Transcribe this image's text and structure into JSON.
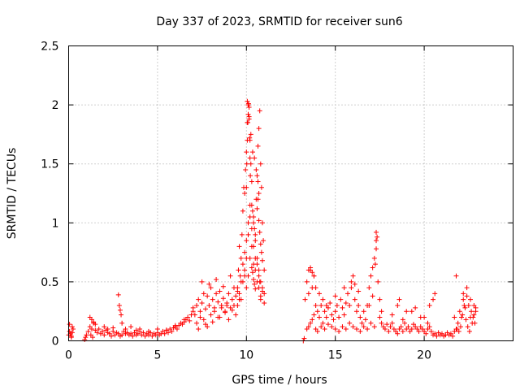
{
  "chart_data": {
    "type": "scatter",
    "title": "Day 337 of 2023, SRMTID for receiver sun6",
    "xlabel": "GPS time / hours",
    "ylabel": "SRMTID / TECUs",
    "xlim": [
      0,
      25
    ],
    "ylim": [
      0,
      2.5
    ],
    "x_ticks": [
      0,
      5,
      10,
      15,
      20
    ],
    "y_ticks": [
      0,
      0.5,
      1,
      1.5,
      2,
      2.5
    ],
    "x_tick_labels": [
      "0",
      "5",
      "10",
      "15",
      "20"
    ],
    "y_tick_labels": [
      "0",
      "0.5",
      "1",
      "1.5",
      "2",
      "2.5"
    ],
    "grid": true,
    "marker": "+",
    "color": "#ff0000",
    "series": [
      {
        "name": "SRMTID",
        "x": [
          0.0,
          0.05,
          0.1,
          0.15,
          0.2,
          0.25,
          0.05,
          0.15,
          0.2,
          0.9,
          0.95,
          1.0,
          1.1,
          1.2,
          1.3,
          1.4,
          1.5,
          1.6,
          1.7,
          1.8,
          1.9,
          2.0,
          2.1,
          2.2,
          2.3,
          2.4,
          2.5,
          2.6,
          2.7,
          2.8,
          2.9,
          3.0,
          3.1,
          3.2,
          3.3,
          3.4,
          3.5,
          3.6,
          3.7,
          3.8,
          3.9,
          4.0,
          4.1,
          4.2,
          4.3,
          4.4,
          4.5,
          4.6,
          4.7,
          4.8,
          4.9,
          5.0,
          5.1,
          5.2,
          5.3,
          5.4,
          5.5,
          5.6,
          5.7,
          5.8,
          5.9,
          6.0,
          6.1,
          6.2,
          6.3,
          6.4,
          6.5,
          6.6,
          6.7,
          6.8,
          6.9,
          7.0,
          1.2,
          1.3,
          1.4,
          1.5,
          1.25,
          1.35,
          2.0,
          2.2,
          2.5,
          2.8,
          2.85,
          2.9,
          2.95,
          3.0,
          3.2,
          3.5,
          3.8,
          4.0,
          4.5,
          5.0,
          5.5,
          6.0,
          6.5,
          7.0,
          7.1,
          7.2,
          7.3,
          7.4,
          7.5,
          7.6,
          7.7,
          7.8,
          7.9,
          8.0,
          8.1,
          8.2,
          8.3,
          8.4,
          8.5,
          8.6,
          8.7,
          8.8,
          8.9,
          9.0,
          9.1,
          9.2,
          9.3,
          9.4,
          9.5,
          7.2,
          7.4,
          7.6,
          7.8,
          8.0,
          8.2,
          8.4,
          8.6,
          8.8,
          9.0,
          9.2,
          9.4,
          7.5,
          7.9,
          8.3,
          8.7,
          9.1,
          9.3,
          7.3,
          7.7,
          8.1,
          8.5,
          8.9,
          9.5,
          9.55,
          9.6,
          9.65,
          9.7,
          9.75,
          9.8,
          9.85,
          9.9,
          9.95,
          10.0,
          10.05,
          10.1,
          10.15,
          10.2,
          10.25,
          10.3,
          10.35,
          10.4,
          10.45,
          10.5,
          10.55,
          10.6,
          10.65,
          10.7,
          10.75,
          10.8,
          10.85,
          10.9,
          10.95,
          11.0,
          9.6,
          9.7,
          9.8,
          9.9,
          10.0,
          10.1,
          10.2,
          10.3,
          10.4,
          10.5,
          10.6,
          10.7,
          10.8,
          10.9,
          11.0,
          9.9,
          10.0,
          10.1,
          10.2,
          10.3,
          10.4,
          10.5,
          10.6,
          10.7,
          10.75,
          10.8,
          9.5,
          9.6,
          9.7,
          9.8,
          9.9,
          10.0,
          10.1,
          10.2,
          10.3,
          10.4,
          10.5,
          10.6,
          10.7,
          10.8,
          10.9,
          11.0,
          10.05,
          10.15,
          10.25,
          10.35,
          10.45,
          10.55,
          10.65,
          10.7,
          10.0,
          10.02,
          10.05,
          10.08,
          10.1,
          10.12,
          10.15,
          10.18,
          10.2,
          10.22,
          10.6,
          10.65,
          10.7,
          10.75,
          10.8,
          10.85,
          10.9,
          10.3,
          10.35,
          10.4,
          10.45,
          10.5,
          13.2,
          13.25,
          13.3,
          13.4,
          13.5,
          13.6,
          13.7,
          13.8,
          13.9,
          14.0,
          14.1,
          14.2,
          14.3,
          14.4,
          14.5,
          14.6,
          14.7,
          14.8,
          14.9,
          15.0,
          15.1,
          15.2,
          15.3,
          15.4,
          15.5,
          15.6,
          15.7,
          15.8,
          15.9,
          16.0,
          16.1,
          16.2,
          16.3,
          16.4,
          16.5,
          16.6,
          16.7,
          16.8,
          16.9,
          17.0,
          17.1,
          17.2,
          17.3,
          17.4,
          17.5,
          17.6,
          13.4,
          13.5,
          13.6,
          13.7,
          13.8,
          13.9,
          14.0,
          14.2,
          14.4,
          14.6,
          14.8,
          15.0,
          15.2,
          15.4,
          15.6,
          15.8,
          16.0,
          16.2,
          16.4,
          16.6,
          16.8,
          17.0,
          17.2,
          13.5,
          13.6,
          13.7,
          13.8,
          13.9,
          14.1,
          14.3,
          14.5,
          15.0,
          15.5,
          15.9,
          16.1,
          16.3,
          16.9,
          17.1,
          17.3,
          17.35,
          17.3,
          17.25,
          17.5,
          17.6,
          17.7,
          17.8,
          17.9,
          18.0,
          18.1,
          18.2,
          18.3,
          18.4,
          18.5,
          18.6,
          18.7,
          18.8,
          18.9,
          19.0,
          19.1,
          19.2,
          19.3,
          19.4,
          19.5,
          19.6,
          19.7,
          19.8,
          19.9,
          20.0,
          20.1,
          20.2,
          20.3,
          20.4,
          20.5,
          20.6,
          20.7,
          20.8,
          20.9,
          21.0,
          21.1,
          21.2,
          21.3,
          21.4,
          21.5,
          21.6,
          21.7,
          21.8,
          18.5,
          18.6,
          19.0,
          19.5,
          20.0,
          20.3,
          20.5,
          20.6,
          18.2,
          18.8,
          19.3,
          19.8,
          20.2,
          21.8,
          21.9,
          22.0,
          22.1,
          22.2,
          22.3,
          22.4,
          22.5,
          22.6,
          22.7,
          22.8,
          22.9,
          21.85,
          21.95,
          22.05,
          22.15,
          22.25,
          22.35,
          22.45,
          22.55,
          22.65,
          22.75,
          22.85,
          21.7,
          22.2,
          22.4,
          22.6,
          22.8,
          22.9
        ],
        "y": [
          0.05,
          0.08,
          0.06,
          0.04,
          0.07,
          0.1,
          0.14,
          0.03,
          0.12,
          0.01,
          0.03,
          0.05,
          0.08,
          0.12,
          0.1,
          0.15,
          0.09,
          0.07,
          0.1,
          0.06,
          0.08,
          0.05,
          0.09,
          0.07,
          0.06,
          0.04,
          0.08,
          0.05,
          0.07,
          0.06,
          0.04,
          0.05,
          0.08,
          0.06,
          0.07,
          0.05,
          0.06,
          0.04,
          0.07,
          0.05,
          0.06,
          0.08,
          0.05,
          0.07,
          0.04,
          0.06,
          0.05,
          0.07,
          0.04,
          0.06,
          0.05,
          0.07,
          0.05,
          0.06,
          0.08,
          0.06,
          0.09,
          0.07,
          0.1,
          0.08,
          0.11,
          0.12,
          0.1,
          0.13,
          0.15,
          0.14,
          0.16,
          0.18,
          0.2,
          0.17,
          0.22,
          0.25,
          0.2,
          0.18,
          0.16,
          0.14,
          0.05,
          0.03,
          0.12,
          0.1,
          0.11,
          0.39,
          0.3,
          0.26,
          0.22,
          0.15,
          0.1,
          0.12,
          0.09,
          0.1,
          0.08,
          0.1,
          0.09,
          0.13,
          0.18,
          0.28,
          0.22,
          0.3,
          0.35,
          0.25,
          0.32,
          0.4,
          0.27,
          0.38,
          0.3,
          0.45,
          0.35,
          0.28,
          0.4,
          0.33,
          0.42,
          0.3,
          0.36,
          0.25,
          0.32,
          0.4,
          0.28,
          0.35,
          0.3,
          0.38,
          0.42,
          0.15,
          0.2,
          0.18,
          0.12,
          0.22,
          0.25,
          0.2,
          0.28,
          0.24,
          0.18,
          0.26,
          0.22,
          0.5,
          0.48,
          0.52,
          0.46,
          0.55,
          0.45,
          0.1,
          0.14,
          0.16,
          0.2,
          0.3,
          0.45,
          0.6,
          0.8,
          0.55,
          0.7,
          0.9,
          1.1,
          1.3,
          1.25,
          1.45,
          1.6,
          1.85,
          2.0,
          1.9,
          1.7,
          1.5,
          1.35,
          1.1,
          1.05,
          0.95,
          0.9,
          1.2,
          1.4,
          1.65,
          1.8,
          1.95,
          1.5,
          1.3,
          1.0,
          0.85,
          0.6,
          0.35,
          0.5,
          0.65,
          0.75,
          0.85,
          1.0,
          1.15,
          0.95,
          0.8,
          0.7,
          0.65,
          0.55,
          0.5,
          0.45,
          0.4,
          0.55,
          0.7,
          0.9,
          1.05,
          1.15,
          1.0,
          0.85,
          0.7,
          0.6,
          0.5,
          0.35,
          0.3,
          0.4,
          0.35,
          0.5,
          0.6,
          0.45,
          0.55,
          0.7,
          0.8,
          0.65,
          0.6,
          0.5,
          0.45,
          0.38,
          0.42,
          0.32,
          2.03,
          1.98,
          1.75,
          1.6,
          1.55,
          1.45,
          1.35,
          1.25,
          1.3,
          1.5,
          1.7,
          1.85,
          1.92,
          2.01,
          1.88,
          1.72,
          1.55,
          1.4,
          1.12,
          1.2,
          1.02,
          0.92,
          0.82,
          0.75,
          0.68,
          0.62,
          0.58,
          0.52,
          0.48,
          0.44,
          0.0,
          0.02,
          0.35,
          0.5,
          0.4,
          0.6,
          0.45,
          0.55,
          0.3,
          0.25,
          0.2,
          0.3,
          0.15,
          0.25,
          0.2,
          0.28,
          0.32,
          0.22,
          0.18,
          0.25,
          0.3,
          0.2,
          0.35,
          0.28,
          0.22,
          0.32,
          0.4,
          0.3,
          0.45,
          0.55,
          0.35,
          0.25,
          0.3,
          0.2,
          0.15,
          0.25,
          0.18,
          0.3,
          0.45,
          0.55,
          0.62,
          0.7,
          0.85,
          0.5,
          0.35,
          0.25,
          0.1,
          0.12,
          0.15,
          0.18,
          0.22,
          0.1,
          0.08,
          0.12,
          0.1,
          0.14,
          0.12,
          0.1,
          0.08,
          0.12,
          0.1,
          0.15,
          0.12,
          0.1,
          0.08,
          0.12,
          0.1,
          0.15,
          0.12,
          0.6,
          0.62,
          0.58,
          0.55,
          0.45,
          0.4,
          0.35,
          0.3,
          0.38,
          0.45,
          0.5,
          0.48,
          0.42,
          0.3,
          0.38,
          0.92,
          0.88,
          0.78,
          0.65,
          0.2,
          0.15,
          0.12,
          0.1,
          0.14,
          0.08,
          0.12,
          0.15,
          0.1,
          0.08,
          0.06,
          0.1,
          0.12,
          0.08,
          0.15,
          0.1,
          0.12,
          0.08,
          0.1,
          0.14,
          0.12,
          0.1,
          0.08,
          0.12,
          0.1,
          0.08,
          0.06,
          0.1,
          0.12,
          0.08,
          0.05,
          0.06,
          0.04,
          0.07,
          0.05,
          0.06,
          0.04,
          0.05,
          0.07,
          0.05,
          0.06,
          0.04,
          0.08,
          0.1,
          0.3,
          0.35,
          0.25,
          0.28,
          0.2,
          0.3,
          0.35,
          0.4,
          0.22,
          0.18,
          0.25,
          0.2,
          0.15,
          0.55,
          0.15,
          0.25,
          0.2,
          0.35,
          0.28,
          0.45,
          0.3,
          0.2,
          0.15,
          0.22,
          0.25,
          0.1,
          0.08,
          0.12,
          0.22,
          0.3,
          0.18,
          0.12,
          0.08,
          0.25,
          0.2,
          0.15,
          0.2,
          0.4,
          0.38,
          0.35,
          0.3,
          0.28
        ]
      }
    ]
  }
}
